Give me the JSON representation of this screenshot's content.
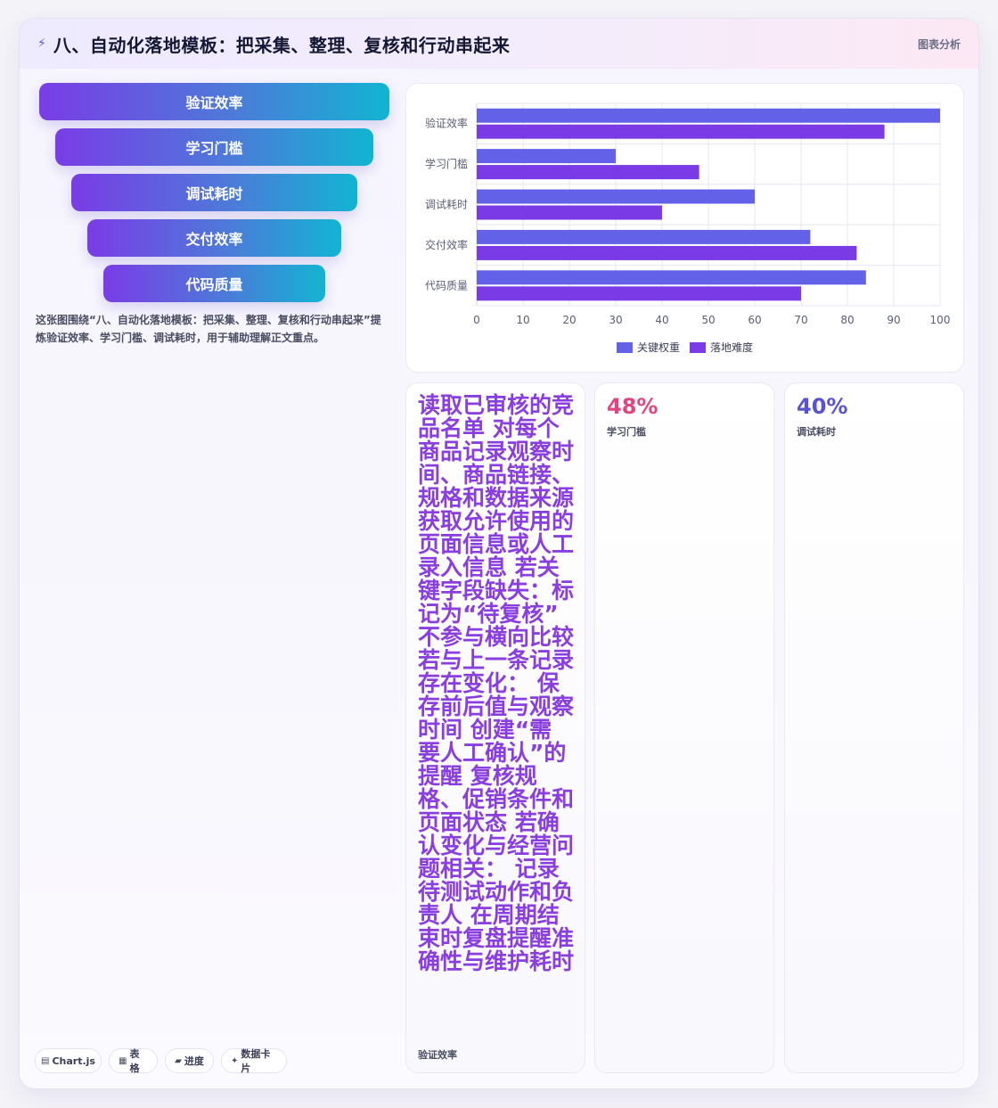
{
  "header": {
    "icon": "bolt-icon",
    "title": "八、自动化落地模板：把采集、整理、复核和行动串起来",
    "tag": "图表分析"
  },
  "funnel": {
    "items": [
      "验证效率",
      "学习门槛",
      "调试耗时",
      "交付效率",
      "代码质量"
    ],
    "description": "这张图围绕“八、自动化落地模板：把采集、整理、复核和行动串起来”提炼验证效率、学习门槛、调试耗时，用于辅助理解正文重点。"
  },
  "chart_data": {
    "type": "bar",
    "orientation": "horizontal",
    "categories": [
      "验证效率",
      "学习门槛",
      "调试耗时",
      "交付效率",
      "代码质量"
    ],
    "series": [
      {
        "name": "关键权重",
        "values": [
          100,
          30,
          60,
          72,
          84
        ],
        "color": "#6361e8"
      },
      {
        "name": "落地难度",
        "values": [
          88,
          48,
          40,
          82,
          70
        ],
        "color": "#7a3ae6"
      }
    ],
    "xlim": [
      0,
      100
    ],
    "ticks": [
      0,
      10,
      20,
      30,
      40,
      50,
      60,
      70,
      80,
      90,
      100
    ],
    "grid": true,
    "legend": "bottom"
  },
  "stats": [
    {
      "text": "读取已审核的竞品名单 对每个商品记录观察时间、商品链接、规格和数据来源 获取允许使用的页面信息或人工录入信息 若关键字段缺失：标记为“待复核” 不参与横向比较 若与上一条记录存在变化： 保存前后值与观察时间 创建“需要人工确认”的提醒 复核规格、促销条件和页面状态 若确认变化与经营问题相关： 记录待测试动作和负责人 在周期结束时复盘提醒准确性与维护耗时",
      "label": "验证效率"
    },
    {
      "value": "48%",
      "label": "学习门槛",
      "color": "#e0457f"
    },
    {
      "value": "40%",
      "label": "调试耗时",
      "color": "#5a52d6"
    }
  ],
  "chips": [
    {
      "icon": "chart-icon",
      "glyph": "▤",
      "label": "Chart.js"
    },
    {
      "icon": "table-icon",
      "glyph": "▦",
      "label": "表格"
    },
    {
      "icon": "folder-icon",
      "glyph": "▰",
      "label": "进度"
    },
    {
      "icon": "sparkle-icon",
      "glyph": "✦",
      "label": "数据卡片"
    }
  ]
}
